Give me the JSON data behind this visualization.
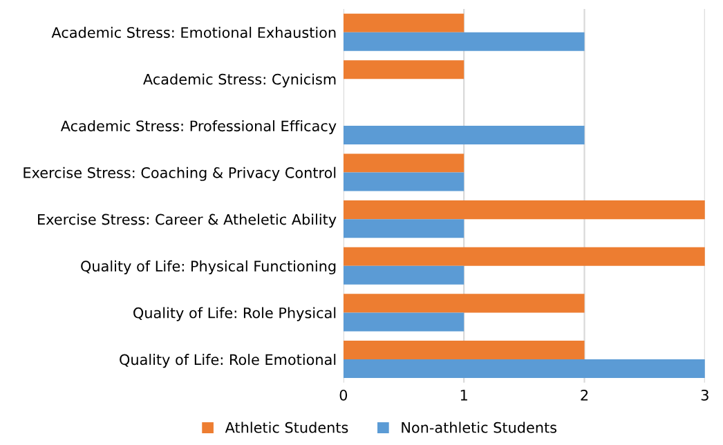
{
  "chart_data": {
    "type": "bar",
    "orientation": "horizontal",
    "categories": [
      "Academic Stress: Emotional Exhaustion",
      "Academic Stress: Cynicism",
      "Academic Stress: Professional Efficacy",
      "Exercise Stress: Coaching & Privacy Control",
      "Exercise Stress: Career & Atheletic Ability",
      "Quality of Life: Physical Functioning",
      "Quality of Life: Role Physical",
      "Quality of Life: Role Emotional"
    ],
    "series": [
      {
        "name": "Athletic Students",
        "color": "#ed7d31",
        "values": [
          1,
          1,
          0,
          1,
          3,
          3,
          2,
          2
        ]
      },
      {
        "name": "Non-athletic Students",
        "color": "#5b9bd5",
        "values": [
          2,
          0,
          2,
          1,
          1,
          1,
          1,
          3
        ]
      }
    ],
    "xlim": [
      0,
      3
    ],
    "xticks": [
      0,
      1,
      2,
      3
    ],
    "grid": "x",
    "legend": "bottom"
  }
}
